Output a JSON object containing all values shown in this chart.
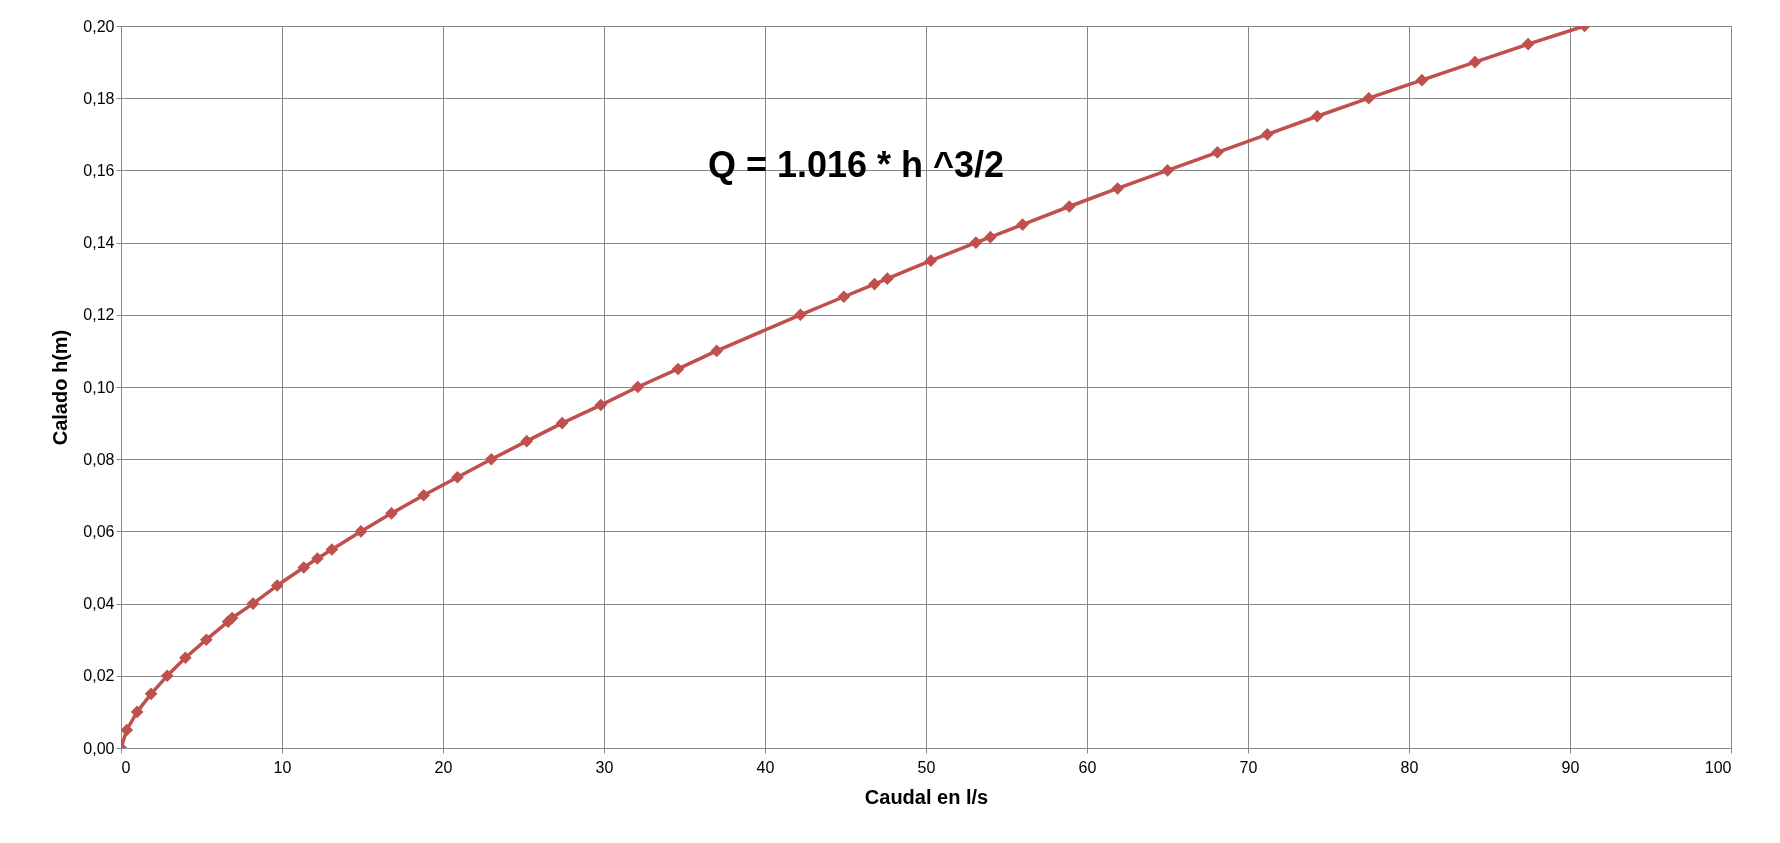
{
  "chart_data": {
    "type": "line",
    "xlabel": "Caudal en l/s",
    "ylabel": "Calado h(m)",
    "annotations": [
      "Q = 1.016 * h ^3/2"
    ],
    "x": [
      0,
      0.36,
      1.0,
      1.87,
      2.87,
      4.0,
      5.3,
      6.65,
      6.9,
      8.2,
      9.7,
      11.35,
      12.2,
      13.1,
      14.9,
      16.8,
      18.8,
      20.9,
      23.0,
      25.2,
      27.4,
      29.8,
      32.1,
      34.6,
      37.0,
      42.2,
      44.9,
      46.8,
      47.6,
      50.3,
      53.1,
      54.0,
      56.0,
      58.9,
      61.9,
      65.0,
      68.1,
      71.2,
      74.3,
      77.5,
      80.8,
      84.1,
      87.4,
      90.9
    ],
    "series": [
      {
        "color": "#c0504d",
        "values": [
          0,
          0.005,
          0.01,
          0.015,
          0.02,
          0.025,
          0.03,
          0.035,
          0.036,
          0.04,
          0.045,
          0.05,
          0.0525,
          0.055,
          0.06,
          0.065,
          0.07,
          0.075,
          0.08,
          0.085,
          0.09,
          0.095,
          0.1,
          0.105,
          0.11,
          0.12,
          0.125,
          0.1285,
          0.13,
          0.135,
          0.14,
          0.1415,
          0.145,
          0.15,
          0.155,
          0.16,
          0.165,
          0.17,
          0.175,
          0.18,
          0.185,
          0.19,
          0.195,
          0.2
        ]
      }
    ],
    "xlim": [
      0,
      100
    ],
    "xticks": [
      0,
      10,
      20,
      30,
      40,
      50,
      60,
      70,
      80,
      90,
      100
    ],
    "ylim": [
      0,
      0.2
    ],
    "yticks": [
      {
        "value": 0,
        "label": "0,00"
      },
      {
        "value": 0.02,
        "label": "0,02"
      },
      {
        "value": 0.04,
        "label": "0,04"
      },
      {
        "value": 0.06,
        "label": "0,06"
      },
      {
        "value": 0.08,
        "label": "0,08"
      },
      {
        "value": 0.1,
        "label": "0,10"
      },
      {
        "value": 0.12,
        "label": "0,12"
      },
      {
        "value": 0.14,
        "label": "0,14"
      },
      {
        "value": 0.16,
        "label": "0,16"
      },
      {
        "value": 0.18,
        "label": "0,18"
      },
      {
        "value": 0.2,
        "label": "0,20"
      }
    ],
    "grid": true,
    "marker": "diamond",
    "line_style": "solid"
  }
}
